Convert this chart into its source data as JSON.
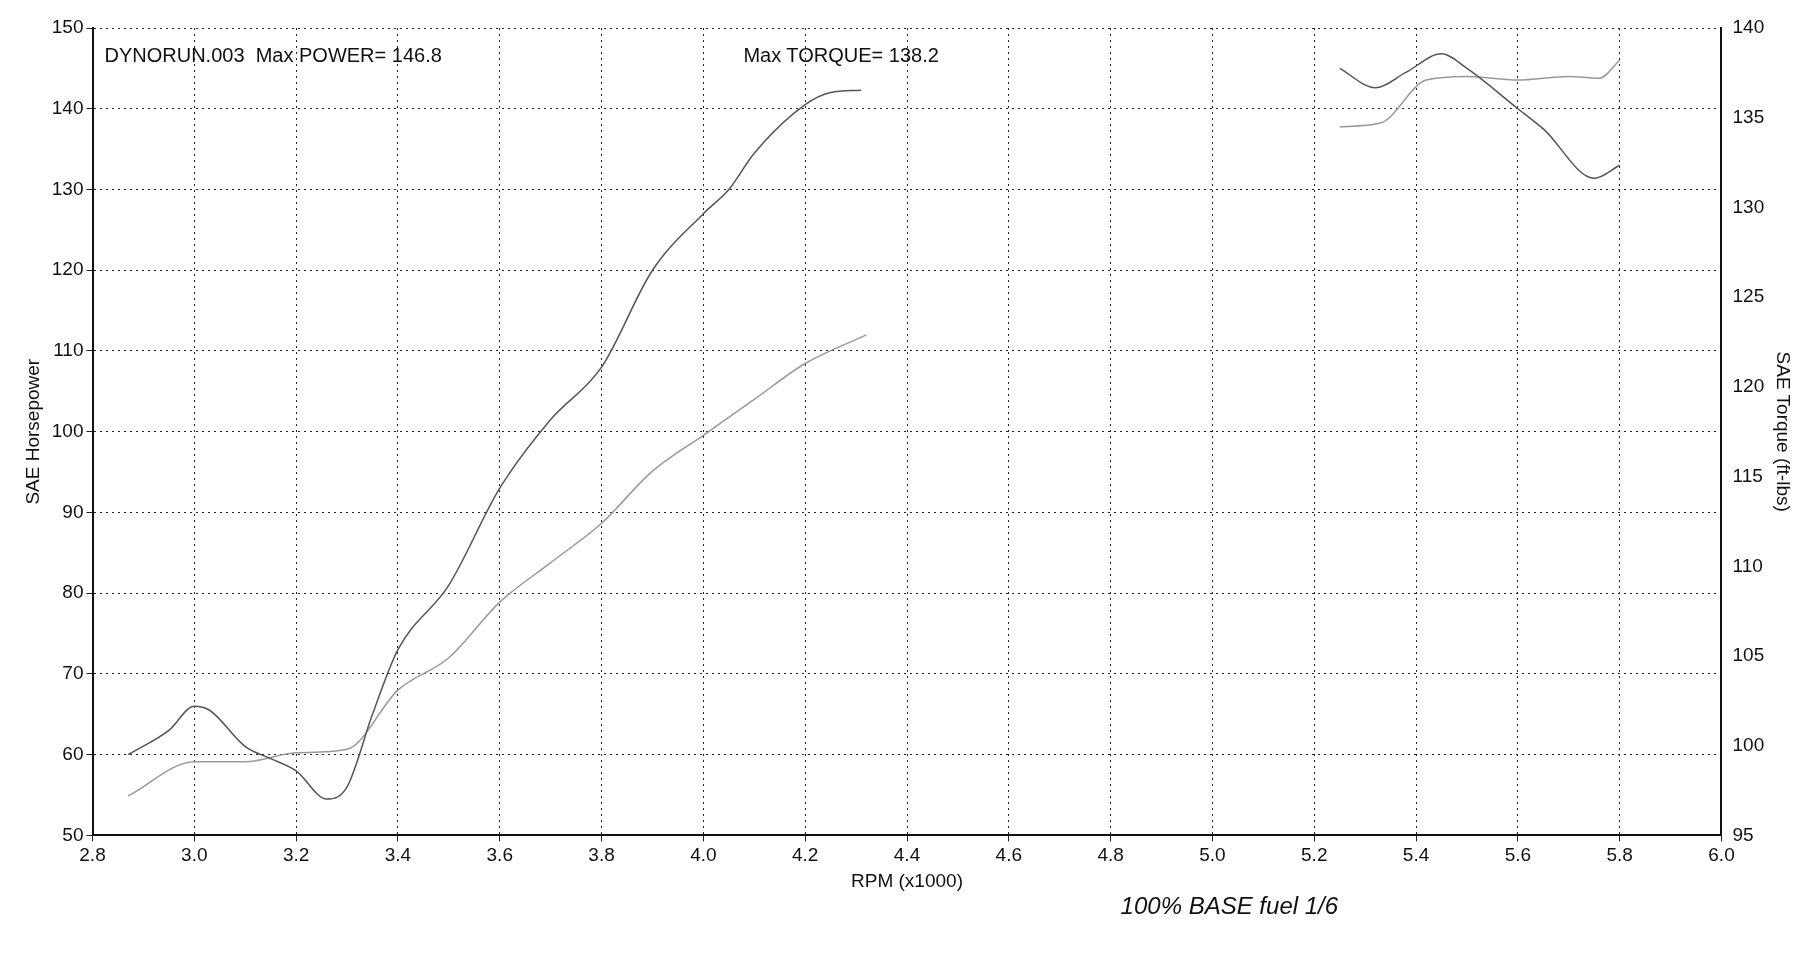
{
  "chart_data": {
    "type": "line",
    "xlabel": "RPM (x1000)",
    "ylabel": "SAE Horsepower",
    "y2label": "SAE Torque (ft-lbs)",
    "annotations": [
      "DYNORUN.003  Max POWER= 146.8",
      "Max TORQUE= 138.2",
      "100% BASE fuel 1/6"
    ],
    "xlim": [
      2.8,
      6.0
    ],
    "xticks": [
      {
        "value": 2.8,
        "label": "2.8"
      },
      {
        "value": 3.0,
        "label": "3.0"
      },
      {
        "value": 3.2,
        "label": "3.2"
      },
      {
        "value": 3.4,
        "label": "3.4"
      },
      {
        "value": 3.6,
        "label": "3.6"
      },
      {
        "value": 3.8,
        "label": "3.8"
      },
      {
        "value": 4.0,
        "label": "4.0"
      },
      {
        "value": 4.2,
        "label": "4.2"
      },
      {
        "value": 4.4,
        "label": "4.4"
      },
      {
        "value": 4.6,
        "label": "4.6"
      },
      {
        "value": 4.8,
        "label": "4.8"
      },
      {
        "value": 5.0,
        "label": "5.0"
      },
      {
        "value": 5.2,
        "label": "5.2"
      },
      {
        "value": 5.4,
        "label": "5.4"
      },
      {
        "value": 5.6,
        "label": "5.6"
      },
      {
        "value": 5.8,
        "label": "5.8"
      },
      {
        "value": 6.0,
        "label": "6.0"
      }
    ],
    "ylim": [
      50,
      150
    ],
    "yticks": [
      50,
      60,
      70,
      80,
      90,
      100,
      110,
      120,
      130,
      140,
      150
    ],
    "y2lim": [
      95,
      140
    ],
    "y2ticks": [
      95,
      100,
      105,
      110,
      115,
      120,
      125,
      130,
      135,
      140
    ],
    "grid": true,
    "legend": false,
    "marker": "none",
    "line_style": "solid",
    "series": [
      {
        "color": "#555555",
        "axis": "y",
        "x": [
          2.87,
          2.95,
          3.0,
          3.03,
          3.1,
          3.15,
          3.2,
          3.26,
          3.3,
          3.35,
          3.4,
          3.5,
          3.6,
          3.7,
          3.8,
          3.9,
          4.0,
          4.05,
          4.1,
          4.2,
          4.25,
          4.31,
          4.8,
          5.25,
          5.32,
          5.38,
          5.45,
          5.5,
          5.6,
          5.65,
          5.75,
          5.8
        ],
        "values": [
          60,
          63,
          66,
          65.5,
          61,
          59.5,
          58,
          54.5,
          56,
          65,
          73,
          81,
          93,
          101.5,
          108,
          120,
          127,
          130,
          134.5,
          140.5,
          142,
          142.3,
          null,
          145,
          142.6,
          144.5,
          146.8,
          145,
          140,
          137.5,
          131.4,
          133
        ]
      },
      {
        "color": "#999999",
        "axis": "y2",
        "x": [
          2.87,
          3.0,
          3.1,
          3.2,
          3.3,
          3.4,
          3.5,
          3.6,
          3.7,
          3.8,
          3.9,
          4.0,
          4.1,
          4.2,
          4.32,
          4.8,
          5.25,
          5.33,
          5.42,
          5.5,
          5.6,
          5.7,
          5.76,
          5.8
        ],
        "values": [
          97.2,
          99.1,
          99.1,
          99.6,
          99.8,
          103.1,
          104.9,
          108.0,
          110.2,
          112.4,
          115.3,
          117.3,
          119.3,
          121.3,
          122.9,
          null,
          134.5,
          134.7,
          137.1,
          137.3,
          137.1,
          137.3,
          137.2,
          138.2
        ]
      }
    ]
  }
}
